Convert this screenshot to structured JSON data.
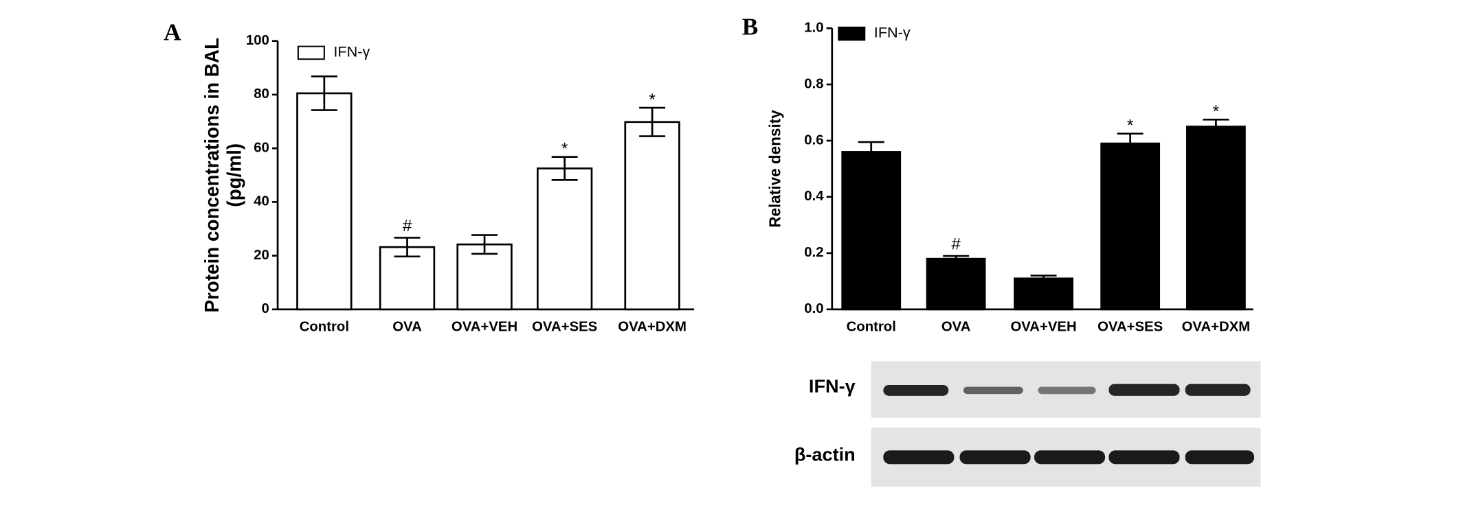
{
  "chart_data": [
    {
      "type": "bar",
      "panel": "A",
      "y_label": [
        "Protein concentrations in BAL",
        "(pg/ml)"
      ],
      "categories": [
        "Control",
        "OVA",
        "OVA+VEH",
        "OVA+SES",
        "OVA+DXM"
      ],
      "series": [
        {
          "name": "IFN-γ",
          "color": "#ffffff",
          "values": [
            80.5,
            23.2,
            24.2,
            52.5,
            69.8
          ],
          "errors": [
            6.3,
            3.5,
            3.5,
            4.3,
            5.3
          ],
          "annotations": [
            null,
            "#",
            null,
            "*",
            "*"
          ]
        }
      ],
      "ylim": [
        0,
        100
      ],
      "yticks": [
        0,
        20,
        40,
        60,
        80,
        100
      ],
      "legend": "top-left"
    },
    {
      "type": "bar",
      "panel": "B",
      "y_label": [
        "Relative density"
      ],
      "categories": [
        "Control",
        "OVA",
        "OVA+VEH",
        "OVA+SES",
        "OVA+DXM"
      ],
      "series": [
        {
          "name": "IFN-γ",
          "color": "#000000",
          "values": [
            0.56,
            0.18,
            0.11,
            0.59,
            0.65
          ],
          "errors": [
            0.035,
            0.01,
            0.01,
            0.035,
            0.025
          ],
          "annotations": [
            null,
            "#",
            null,
            "*",
            "*"
          ]
        }
      ],
      "ylim": [
        0,
        1
      ],
      "yticks": [
        {
          "value": 0,
          "label": "0.0"
        },
        0.2,
        0.4,
        0.6,
        0.8,
        {
          "value": 1,
          "label": "1.0"
        }
      ],
      "legend": "top-left"
    }
  ],
  "blot": {
    "labels": [
      "IFN-γ",
      "β-actin"
    ]
  }
}
